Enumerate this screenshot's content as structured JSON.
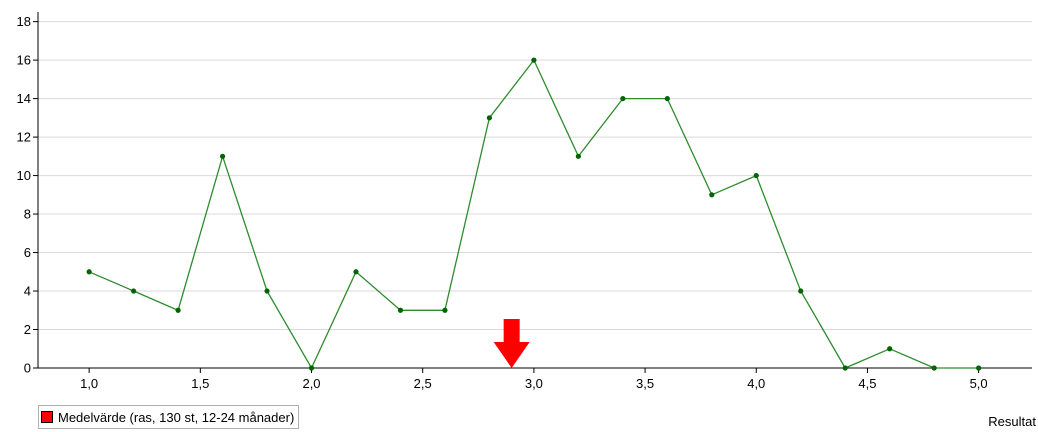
{
  "chart_data": {
    "type": "line",
    "x": [
      1.0,
      1.2,
      1.4,
      1.6,
      1.8,
      2.0,
      2.2,
      2.4,
      2.6,
      2.8,
      3.0,
      3.2,
      3.4,
      3.6,
      3.8,
      4.0,
      4.2,
      4.4,
      4.6,
      4.8,
      5.0
    ],
    "values": [
      5,
      4,
      3,
      11,
      4,
      0,
      5,
      3,
      3,
      13,
      16,
      11,
      14,
      14,
      9,
      10,
      4,
      0,
      1,
      0,
      0
    ],
    "xticks": [
      1.0,
      1.5,
      2.0,
      2.5,
      3.0,
      3.5,
      4.0,
      4.5,
      5.0
    ],
    "xtick_labels": [
      "1,0",
      "1,5",
      "2,0",
      "2,5",
      "3,0",
      "3,5",
      "4,0",
      "4,5",
      "5,0"
    ],
    "yticks": [
      0,
      2,
      4,
      6,
      8,
      10,
      12,
      14,
      16,
      18
    ],
    "xlim": [
      0.77,
      5.24
    ],
    "ylim": [
      0,
      18.5
    ],
    "xlabel": "Resultat",
    "ylabel": "",
    "grid": "horizontal",
    "line_color": "#2e8b2e",
    "marker_color": "#006400",
    "mean_marker": {
      "x": 2.9,
      "label": "Medelvärde (ras, 130 st, 12-24 månader)",
      "color": "#ff0000"
    },
    "legend_position": "bottom-left"
  }
}
